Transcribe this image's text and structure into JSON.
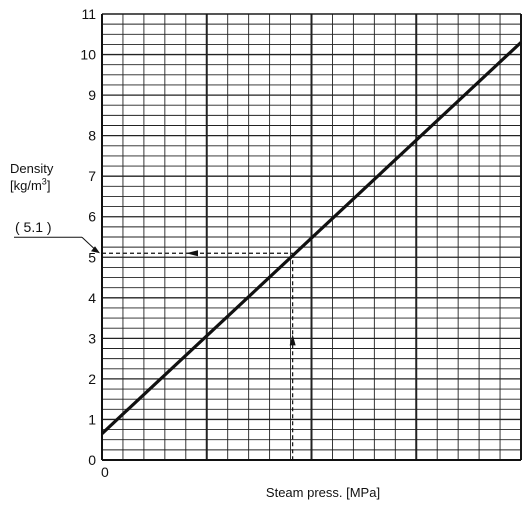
{
  "chart_data": {
    "type": "line",
    "title": "",
    "xlabel": "Steam press. [MPa]",
    "ylabel": {
      "line1": "Density",
      "line2_prefix": "[kg/m",
      "line2_sup": "3",
      "line2_suffix": "]"
    },
    "ylim": [
      0,
      11
    ],
    "yticks": [
      "0",
      "1",
      "2",
      "3",
      "4",
      "5",
      "6",
      "7",
      "8",
      "9",
      "10",
      "11"
    ],
    "xticks": [
      "0"
    ],
    "x_tick_values_visible": [
      0
    ],
    "grid": true,
    "series": [
      {
        "points_x_fraction_of_axis": [
          0,
          1
        ],
        "y": [
          0.65,
          10.3
        ]
      }
    ],
    "annotation": {
      "label": "( 5.1 )",
      "value": 5.1,
      "x_fraction_of_axis": 0.455
    },
    "colors": {
      "line": "#111111",
      "grid": "#222222"
    }
  }
}
